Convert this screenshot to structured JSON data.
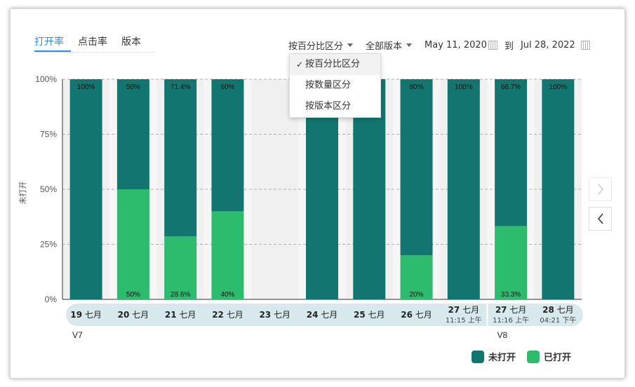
{
  "tabs": [
    {
      "label": "打开率",
      "active": true
    },
    {
      "label": "点击率",
      "active": false
    },
    {
      "label": "版本",
      "active": false
    }
  ],
  "toolbar": {
    "breakdown_label": "按百分比区分",
    "version_label": "全部版本",
    "date_from": "May 11, 2020",
    "date_sep": "到",
    "date_to": "Jul 28, 2022"
  },
  "menu": {
    "items": [
      {
        "label": "按百分比区分",
        "selected": true
      },
      {
        "label": "按数量区分",
        "selected": false
      },
      {
        "label": "按版本区分",
        "selected": false
      }
    ]
  },
  "legend": [
    {
      "label": "未打开",
      "color": "#13756f"
    },
    {
      "label": "已打开",
      "color": "#2dbb6e"
    }
  ],
  "chart_data": {
    "type": "bar",
    "stacked": true,
    "ylabel": "未打开",
    "yticks": [
      "0%",
      "25%",
      "50%",
      "75%",
      "100%"
    ],
    "ylim": [
      0,
      100
    ],
    "grid": true,
    "categories": [
      {
        "day": "19",
        "month": "七月",
        "time": ""
      },
      {
        "day": "20",
        "month": "七月",
        "time": ""
      },
      {
        "day": "21",
        "month": "七月",
        "time": ""
      },
      {
        "day": "22",
        "month": "七月",
        "time": ""
      },
      {
        "day": "23",
        "month": "七月",
        "time": ""
      },
      {
        "day": "24",
        "month": "七月",
        "time": ""
      },
      {
        "day": "25",
        "month": "七月",
        "time": ""
      },
      {
        "day": "26",
        "month": "七月",
        "time": ""
      },
      {
        "day": "27",
        "month": "七月",
        "time": "11:15 上午"
      },
      {
        "day": "27",
        "month": "七月",
        "time": "11:16 上午"
      },
      {
        "day": "28",
        "month": "七月",
        "time": "04:21 下午"
      }
    ],
    "series": [
      {
        "name": "未打开",
        "color": "#13756f",
        "values": [
          100,
          50,
          71.4,
          60,
          0,
          100,
          100,
          80,
          100,
          66.7,
          100
        ]
      },
      {
        "name": "已打开",
        "color": "#2dbb6e",
        "values": [
          0,
          50,
          28.6,
          40,
          0,
          0,
          0,
          20,
          0,
          33.3,
          0
        ]
      }
    ],
    "top_labels": [
      "100%",
      "50%",
      "71.4%",
      "60%",
      "",
      "",
      "",
      "80%",
      "100%",
      "66.7%",
      "100%"
    ],
    "bottom_labels": [
      "",
      "50%",
      "28.6%",
      "40%",
      "",
      "",
      "",
      "20%",
      "",
      "33.3%",
      ""
    ],
    "versions": [
      {
        "label": "V7",
        "start_index": 0
      },
      {
        "label": "V8",
        "start_index": 9
      }
    ]
  }
}
